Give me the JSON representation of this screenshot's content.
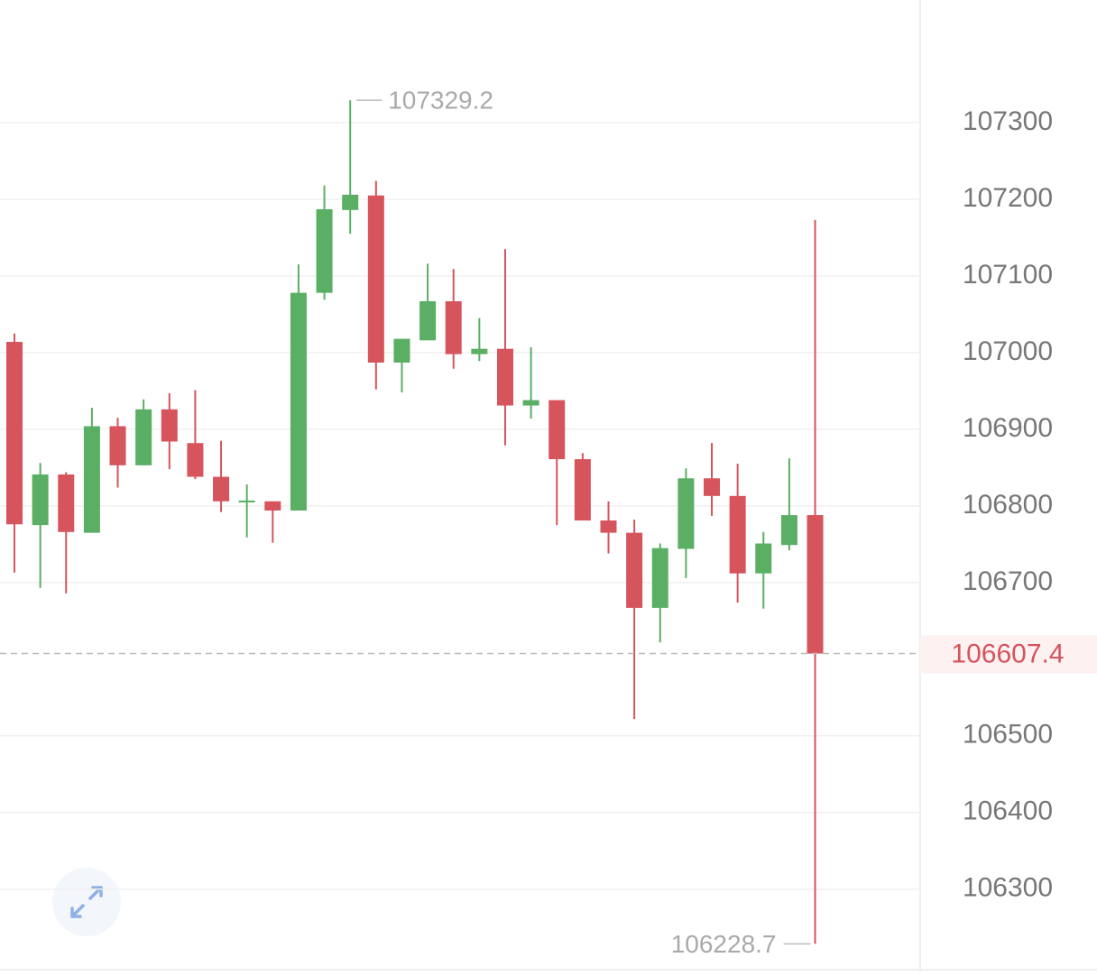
{
  "chart_data": {
    "type": "candlestick",
    "open": [
      107014,
      106775,
      106841,
      106765,
      106904,
      106853,
      106926,
      106882,
      106838,
      106806,
      106806,
      106794,
      107078,
      107186,
      107205,
      106987,
      107016,
      107067,
      106998,
      107005,
      106931,
      106938,
      106861,
      106781,
      106765,
      106667,
      106744,
      106836,
      106813,
      106712,
      106749,
      106788
    ],
    "high": [
      107025,
      106856,
      106844,
      106928,
      106915,
      106939,
      106947,
      106951,
      106885,
      106828,
      106806,
      107115,
      107218,
      107329.2,
      107224,
      107018,
      107116,
      107109,
      107045,
      107135,
      107007,
      106938,
      106869,
      106806,
      106782,
      106751,
      106849,
      106882,
      106855,
      106766,
      106862,
      107173
    ],
    "low": [
      106713,
      106693,
      106686,
      106765,
      106824,
      106853,
      106848,
      106835,
      106792,
      106759,
      106752,
      106794,
      107069,
      107155,
      106952,
      106948,
      107016,
      106979,
      106989,
      106879,
      106914,
      106775,
      106781,
      106738,
      106522,
      106622,
      106706,
      106787,
      106674,
      106666,
      106742,
      106228.7
    ],
    "close": [
      106776,
      106841,
      106766,
      106904,
      106853,
      106926,
      106884,
      106838,
      106806,
      106807,
      106794,
      107078,
      107187,
      107206,
      106987,
      107018,
      107067,
      106998,
      107005,
      106931,
      106938,
      106861,
      106781,
      106765,
      106667,
      106745,
      106836,
      106813,
      106712,
      106751,
      106788,
      106607.4
    ],
    "up_color": "#5aaf64",
    "down_color": "#d6545c",
    "ylim": [
      106195,
      107460
    ],
    "yticks": [
      106300,
      106400,
      106500,
      106700,
      106800,
      106900,
      107000,
      107100,
      107200,
      107300
    ],
    "grid": true
  }
}
